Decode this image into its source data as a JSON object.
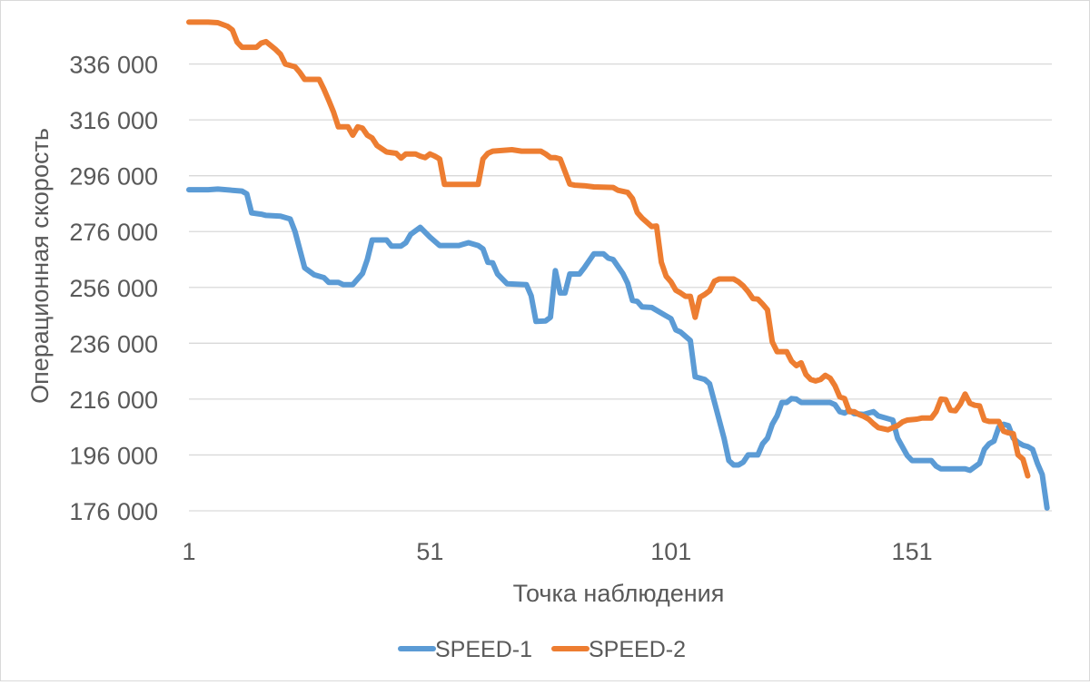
{
  "chart_data": {
    "type": "line",
    "title": "",
    "xlabel": "Точка наблюдения",
    "ylabel": "Операционная скорость",
    "ylim": [
      176000,
      356000
    ],
    "xlim": [
      1,
      180
    ],
    "yticks": [
      176000,
      196000,
      216000,
      236000,
      256000,
      276000,
      296000,
      316000,
      336000
    ],
    "ytick_labels": [
      "176 000",
      "196 000",
      "216 000",
      "236 000",
      "256 000",
      "276 000",
      "296 000",
      "316 000",
      "336 000"
    ],
    "xticks": [
      1,
      51,
      101,
      151
    ],
    "xtick_labels": [
      "1",
      "51",
      "101",
      "151"
    ],
    "grid": "horizontal",
    "legend": "bottom",
    "series": [
      {
        "name": "SPEED-1",
        "color": "#5b9bd5",
        "points": [
          [
            1,
            291000
          ],
          [
            5,
            291000
          ],
          [
            7,
            291200
          ],
          [
            12,
            290500
          ],
          [
            13,
            289500
          ],
          [
            14,
            282700
          ],
          [
            16,
            282200
          ],
          [
            17,
            281800
          ],
          [
            20,
            281500
          ],
          [
            22,
            280500
          ],
          [
            23,
            276000
          ],
          [
            25,
            263000
          ],
          [
            27,
            260500
          ],
          [
            29,
            259500
          ],
          [
            30,
            257800
          ],
          [
            32,
            257800
          ],
          [
            33,
            257000
          ],
          [
            35,
            257000
          ],
          [
            37,
            261000
          ],
          [
            38,
            266000
          ],
          [
            39,
            273000
          ],
          [
            42,
            273000
          ],
          [
            43,
            270800
          ],
          [
            45,
            270800
          ],
          [
            46,
            272000
          ],
          [
            47,
            275000
          ],
          [
            49,
            277500
          ],
          [
            51,
            274000
          ],
          [
            53,
            271000
          ],
          [
            57,
            271000
          ],
          [
            59,
            272000
          ],
          [
            61,
            271000
          ],
          [
            62,
            269800
          ],
          [
            63,
            265000
          ],
          [
            64,
            264800
          ],
          [
            65,
            260800
          ],
          [
            67,
            257300
          ],
          [
            71,
            257000
          ],
          [
            72,
            253000
          ],
          [
            73,
            243800
          ],
          [
            75,
            244000
          ],
          [
            76,
            245300
          ],
          [
            77,
            262000
          ],
          [
            78,
            254000
          ],
          [
            79,
            254000
          ],
          [
            80,
            260800
          ],
          [
            82,
            260800
          ],
          [
            83,
            263000
          ],
          [
            85,
            268000
          ],
          [
            87,
            268000
          ],
          [
            88,
            266500
          ],
          [
            89,
            266000
          ],
          [
            91,
            261000
          ],
          [
            92,
            257500
          ],
          [
            93,
            251300
          ],
          [
            94,
            251000
          ],
          [
            95,
            249000
          ],
          [
            97,
            248800
          ],
          [
            98,
            247800
          ],
          [
            100,
            245800
          ],
          [
            101,
            244800
          ],
          [
            102,
            240800
          ],
          [
            103,
            240000
          ],
          [
            105,
            237000
          ],
          [
            106,
            224000
          ],
          [
            108,
            223000
          ],
          [
            109,
            221500
          ],
          [
            110,
            215000
          ],
          [
            112,
            202000
          ],
          [
            113,
            194000
          ],
          [
            114,
            192400
          ],
          [
            115,
            192400
          ],
          [
            116,
            193400
          ],
          [
            117,
            196000
          ],
          [
            119,
            196000
          ],
          [
            120,
            200000
          ],
          [
            121,
            202000
          ],
          [
            122,
            207000
          ],
          [
            123,
            210000
          ],
          [
            124,
            214800
          ],
          [
            125,
            214800
          ],
          [
            126,
            216200
          ],
          [
            127,
            216000
          ],
          [
            128,
            214800
          ],
          [
            134,
            214800
          ],
          [
            135,
            214000
          ],
          [
            136,
            211500
          ],
          [
            137,
            211000
          ],
          [
            138,
            212000
          ],
          [
            139,
            210800
          ],
          [
            141,
            210500
          ],
          [
            142,
            211000
          ],
          [
            143,
            211500
          ],
          [
            144,
            210000
          ],
          [
            147,
            208500
          ],
          [
            148,
            202000
          ],
          [
            150,
            195800
          ],
          [
            151,
            194000
          ],
          [
            155,
            194000
          ],
          [
            156,
            192000
          ],
          [
            157,
            191000
          ],
          [
            162,
            191000
          ],
          [
            163,
            190500
          ],
          [
            165,
            193000
          ],
          [
            166,
            198000
          ],
          [
            167,
            200000
          ],
          [
            168,
            201000
          ],
          [
            169,
            206000
          ],
          [
            170,
            207000
          ],
          [
            171,
            206500
          ],
          [
            172,
            202000
          ],
          [
            173,
            200500
          ],
          [
            174,
            199500
          ],
          [
            175,
            199000
          ],
          [
            176,
            198000
          ],
          [
            177,
            193000
          ],
          [
            178,
            189000
          ],
          [
            179,
            177000
          ]
        ]
      },
      {
        "name": "SPEED-2",
        "color": "#ed7d31",
        "points": [
          [
            1,
            351000
          ],
          [
            5,
            351000
          ],
          [
            7,
            350800
          ],
          [
            9,
            349500
          ],
          [
            10,
            348200
          ],
          [
            11,
            343800
          ],
          [
            12,
            342000
          ],
          [
            14,
            342000
          ],
          [
            15,
            342000
          ],
          [
            16,
            343500
          ],
          [
            17,
            344000
          ],
          [
            19,
            341200
          ],
          [
            20,
            339500
          ],
          [
            21,
            336000
          ],
          [
            23,
            335000
          ],
          [
            24,
            333000
          ],
          [
            25,
            330500
          ],
          [
            28,
            330500
          ],
          [
            29,
            327000
          ],
          [
            30,
            323000
          ],
          [
            31,
            318800
          ],
          [
            32,
            313500
          ],
          [
            34,
            313500
          ],
          [
            35,
            310500
          ],
          [
            36,
            313500
          ],
          [
            37,
            313000
          ],
          [
            38,
            310500
          ],
          [
            39,
            309500
          ],
          [
            40,
            306800
          ],
          [
            42,
            304500
          ],
          [
            44,
            304000
          ],
          [
            45,
            302300
          ],
          [
            46,
            303800
          ],
          [
            48,
            303800
          ],
          [
            49,
            303000
          ],
          [
            50,
            302500
          ],
          [
            51,
            303800
          ],
          [
            52,
            303000
          ],
          [
            53,
            302000
          ],
          [
            54,
            292900
          ],
          [
            61,
            292900
          ],
          [
            62,
            302000
          ],
          [
            63,
            304000
          ],
          [
            64,
            304800
          ],
          [
            68,
            305300
          ],
          [
            70,
            304800
          ],
          [
            74,
            304800
          ],
          [
            75,
            303800
          ],
          [
            76,
            302500
          ],
          [
            77,
            302500
          ],
          [
            78,
            302000
          ],
          [
            80,
            293000
          ],
          [
            81,
            292600
          ],
          [
            83,
            292400
          ],
          [
            85,
            292000
          ],
          [
            89,
            291800
          ],
          [
            90,
            290800
          ],
          [
            92,
            290000
          ],
          [
            93,
            287800
          ],
          [
            94,
            282800
          ],
          [
            95,
            280800
          ],
          [
            97,
            277800
          ],
          [
            98,
            278000
          ],
          [
            99,
            265000
          ],
          [
            100,
            260000
          ],
          [
            101,
            258000
          ],
          [
            102,
            255000
          ],
          [
            103,
            254000
          ],
          [
            104,
            252800
          ],
          [
            105,
            252800
          ],
          [
            106,
            245300
          ],
          [
            107,
            252500
          ],
          [
            108,
            253500
          ],
          [
            109,
            254800
          ],
          [
            110,
            258200
          ],
          [
            111,
            259000
          ],
          [
            114,
            259000
          ],
          [
            115,
            258000
          ],
          [
            116,
            256500
          ],
          [
            117,
            254500
          ],
          [
            118,
            252000
          ],
          [
            119,
            251800
          ],
          [
            120,
            250000
          ],
          [
            121,
            248000
          ],
          [
            122,
            236500
          ],
          [
            123,
            233000
          ],
          [
            125,
            233000
          ],
          [
            126,
            229600
          ],
          [
            127,
            228000
          ],
          [
            128,
            229000
          ],
          [
            129,
            224800
          ],
          [
            130,
            223000
          ],
          [
            131,
            222500
          ],
          [
            132,
            223000
          ],
          [
            133,
            224500
          ],
          [
            134,
            223500
          ],
          [
            135,
            220800
          ],
          [
            136,
            216800
          ],
          [
            137,
            216200
          ],
          [
            138,
            211500
          ],
          [
            139,
            211500
          ],
          [
            140,
            210500
          ],
          [
            141,
            209800
          ],
          [
            142,
            208800
          ],
          [
            143,
            207200
          ],
          [
            144,
            205800
          ],
          [
            146,
            205000
          ],
          [
            147,
            205800
          ],
          [
            148,
            206500
          ],
          [
            149,
            207800
          ],
          [
            150,
            208500
          ],
          [
            152,
            208800
          ],
          [
            153,
            209200
          ],
          [
            155,
            209200
          ],
          [
            156,
            211500
          ],
          [
            157,
            216000
          ],
          [
            158,
            215800
          ],
          [
            159,
            212000
          ],
          [
            160,
            211800
          ],
          [
            161,
            214200
          ],
          [
            162,
            217800
          ],
          [
            163,
            214500
          ],
          [
            164,
            213800
          ],
          [
            165,
            213600
          ],
          [
            166,
            208500
          ],
          [
            167,
            208000
          ],
          [
            169,
            208000
          ],
          [
            170,
            204500
          ],
          [
            171,
            203900
          ],
          [
            172,
            203600
          ],
          [
            173,
            196000
          ],
          [
            174,
            194500
          ],
          [
            175,
            188500
          ]
        ]
      }
    ]
  }
}
